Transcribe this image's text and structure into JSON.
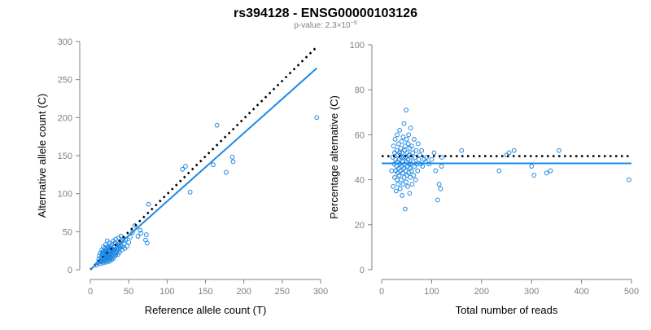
{
  "title": "rs394128 - ENSG00000103126",
  "subtitle": {
    "prefix": "p-value: 2.3×10",
    "exponent": "−9"
  },
  "colors": {
    "points": "#1E88E5",
    "fit_line": "#1E88E5",
    "reference_line": "#000000",
    "axes": "#808080"
  },
  "chart_data": [
    {
      "type": "scatter",
      "xlabel": "Reference allele count (T)",
      "ylabel": "Alternative allele count (C)",
      "xlim": [
        0,
        300
      ],
      "ylim": [
        0,
        300
      ],
      "xticks": [
        0,
        50,
        100,
        150,
        200,
        250,
        300
      ],
      "yticks": [
        0,
        50,
        100,
        150,
        200,
        250,
        300
      ],
      "grid": false,
      "reference_line": {
        "style": "dotted",
        "from": [
          0,
          0
        ],
        "to": [
          295,
          293
        ]
      },
      "fit_line": {
        "style": "solid",
        "from": [
          0,
          0
        ],
        "to": [
          295,
          265
        ]
      },
      "points": [
        [
          8,
          6
        ],
        [
          10,
          9
        ],
        [
          11,
          14
        ],
        [
          12,
          11
        ],
        [
          12,
          18
        ],
        [
          13,
          8
        ],
        [
          13,
          22
        ],
        [
          14,
          12
        ],
        [
          14,
          16
        ],
        [
          15,
          10
        ],
        [
          15,
          20
        ],
        [
          15,
          26
        ],
        [
          16,
          14
        ],
        [
          16,
          18
        ],
        [
          16,
          23
        ],
        [
          17,
          9
        ],
        [
          17,
          12
        ],
        [
          17,
          21
        ],
        [
          17,
          30
        ],
        [
          18,
          15
        ],
        [
          18,
          19
        ],
        [
          18,
          25
        ],
        [
          19,
          11
        ],
        [
          19,
          17
        ],
        [
          19,
          22
        ],
        [
          19,
          28
        ],
        [
          20,
          13
        ],
        [
          20,
          20
        ],
        [
          20,
          24
        ],
        [
          20,
          33
        ],
        [
          21,
          10
        ],
        [
          21,
          16
        ],
        [
          21,
          21
        ],
        [
          21,
          27
        ],
        [
          22,
          14
        ],
        [
          22,
          18
        ],
        [
          22,
          23
        ],
        [
          22,
          30
        ],
        [
          22,
          38
        ],
        [
          23,
          12
        ],
        [
          23,
          17
        ],
        [
          23,
          21
        ],
        [
          23,
          26
        ],
        [
          24,
          15
        ],
        [
          24,
          19
        ],
        [
          24,
          24
        ],
        [
          24,
          29
        ],
        [
          25,
          11
        ],
        [
          25,
          18
        ],
        [
          25,
          22
        ],
        [
          25,
          27
        ],
        [
          25,
          35
        ],
        [
          26,
          14
        ],
        [
          26,
          20
        ],
        [
          26,
          25
        ],
        [
          26,
          31
        ],
        [
          27,
          16
        ],
        [
          27,
          21
        ],
        [
          27,
          28
        ],
        [
          28,
          13
        ],
        [
          28,
          19
        ],
        [
          28,
          24
        ],
        [
          28,
          33
        ],
        [
          29,
          17
        ],
        [
          29,
          22
        ],
        [
          29,
          27
        ],
        [
          30,
          15
        ],
        [
          30,
          20
        ],
        [
          30,
          26
        ],
        [
          30,
          38
        ],
        [
          31,
          18
        ],
        [
          31,
          23
        ],
        [
          31,
          30
        ],
        [
          32,
          21
        ],
        [
          32,
          26
        ],
        [
          32,
          35
        ],
        [
          33,
          19
        ],
        [
          33,
          24
        ],
        [
          33,
          40
        ],
        [
          34,
          22
        ],
        [
          34,
          28
        ],
        [
          35,
          25
        ],
        [
          35,
          33
        ],
        [
          36,
          20
        ],
        [
          36,
          30
        ],
        [
          37,
          27
        ],
        [
          37,
          42
        ],
        [
          38,
          23
        ],
        [
          38,
          35
        ],
        [
          39,
          29
        ],
        [
          40,
          32
        ],
        [
          40,
          44
        ],
        [
          41,
          26
        ],
        [
          42,
          30
        ],
        [
          42,
          38
        ],
        [
          44,
          34
        ],
        [
          45,
          28
        ],
        [
          46,
          40
        ],
        [
          48,
          31
        ],
        [
          50,
          36
        ],
        [
          52,
          43
        ],
        [
          55,
          49
        ],
        [
          58,
          58
        ],
        [
          62,
          44
        ],
        [
          65,
          52
        ],
        [
          66,
          48
        ],
        [
          72,
          39
        ],
        [
          73,
          46
        ],
        [
          74,
          35
        ],
        [
          76,
          86
        ],
        [
          120,
          132
        ],
        [
          124,
          136
        ],
        [
          130,
          102
        ],
        [
          160,
          138
        ],
        [
          165,
          190
        ],
        [
          177,
          128
        ],
        [
          185,
          148
        ],
        [
          186,
          142
        ],
        [
          295,
          200
        ]
      ]
    },
    {
      "type": "scatter",
      "xlabel": "Total number of reads",
      "ylabel": "Percentage alternative (C)",
      "xlim": [
        0,
        500
      ],
      "ylim": [
        0,
        100
      ],
      "xticks": [
        0,
        100,
        200,
        300,
        400,
        500
      ],
      "yticks": [
        0,
        20,
        40,
        60,
        80,
        100
      ],
      "grid": false,
      "reference_line": {
        "style": "dotted",
        "y": 50.5,
        "x_range": [
          0,
          500
        ]
      },
      "fit_line": {
        "style": "solid",
        "y": 47.3,
        "x_range": [
          0,
          500
        ]
      },
      "points": [
        [
          20,
          44
        ],
        [
          22,
          50
        ],
        [
          23,
          37
        ],
        [
          24,
          55
        ],
        [
          25,
          47
        ],
        [
          26,
          41
        ],
        [
          26,
          52
        ],
        [
          27,
          58
        ],
        [
          28,
          44
        ],
        [
          28,
          49
        ],
        [
          29,
          35
        ],
        [
          30,
          53
        ],
        [
          30,
          46
        ],
        [
          31,
          40
        ],
        [
          31,
          60
        ],
        [
          32,
          48
        ],
        [
          32,
          43
        ],
        [
          33,
          51
        ],
        [
          33,
          38
        ],
        [
          34,
          56
        ],
        [
          34,
          45
        ],
        [
          35,
          49
        ],
        [
          35,
          42
        ],
        [
          36,
          62
        ],
        [
          36,
          52
        ],
        [
          37,
          36
        ],
        [
          37,
          47
        ],
        [
          38,
          54
        ],
        [
          38,
          44
        ],
        [
          39,
          50
        ],
        [
          39,
          40
        ],
        [
          40,
          57
        ],
        [
          40,
          46
        ],
        [
          41,
          33
        ],
        [
          41,
          52
        ],
        [
          42,
          43
        ],
        [
          42,
          48
        ],
        [
          43,
          59
        ],
        [
          43,
          38
        ],
        [
          44,
          50
        ],
        [
          44,
          45
        ],
        [
          45,
          65
        ],
        [
          45,
          41
        ],
        [
          46,
          53
        ],
        [
          46,
          47
        ],
        [
          47,
          27
        ],
        [
          47,
          55
        ],
        [
          48,
          44
        ],
        [
          48,
          50
        ],
        [
          49,
          71
        ],
        [
          49,
          39
        ],
        [
          50,
          48
        ],
        [
          50,
          58
        ],
        [
          51,
          42
        ],
        [
          51,
          52
        ],
        [
          52,
          46
        ],
        [
          52,
          37
        ],
        [
          53,
          56
        ],
        [
          53,
          49
        ],
        [
          54,
          43
        ],
        [
          54,
          60
        ],
        [
          55,
          47
        ],
        [
          55,
          51
        ],
        [
          56,
          34
        ],
        [
          56,
          54
        ],
        [
          57,
          45
        ],
        [
          57,
          41
        ],
        [
          58,
          50
        ],
        [
          58,
          63
        ],
        [
          59,
          47
        ],
        [
          60,
          44
        ],
        [
          60,
          55
        ],
        [
          61,
          38
        ],
        [
          62,
          52
        ],
        [
          63,
          48
        ],
        [
          64,
          42
        ],
        [
          65,
          58
        ],
        [
          66,
          46
        ],
        [
          67,
          50
        ],
        [
          68,
          40
        ],
        [
          69,
          53
        ],
        [
          70,
          47
        ],
        [
          72,
          44
        ],
        [
          73,
          56
        ],
        [
          74,
          49
        ],
        [
          76,
          51
        ],
        [
          78,
          47
        ],
        [
          80,
          53
        ],
        [
          82,
          46
        ],
        [
          85,
          49
        ],
        [
          88,
          48
        ],
        [
          90,
          50
        ],
        [
          95,
          47
        ],
        [
          100,
          49
        ],
        [
          105,
          52
        ],
        [
          108,
          44
        ],
        [
          112,
          31
        ],
        [
          115,
          38
        ],
        [
          118,
          36
        ],
        [
          120,
          46
        ],
        [
          120,
          50
        ],
        [
          160,
          53
        ],
        [
          235,
          44
        ],
        [
          250,
          51
        ],
        [
          255,
          52
        ],
        [
          265,
          53
        ],
        [
          300,
          46
        ],
        [
          305,
          42
        ],
        [
          330,
          43
        ],
        [
          338,
          44
        ],
        [
          355,
          53
        ],
        [
          495,
          40
        ]
      ]
    }
  ]
}
